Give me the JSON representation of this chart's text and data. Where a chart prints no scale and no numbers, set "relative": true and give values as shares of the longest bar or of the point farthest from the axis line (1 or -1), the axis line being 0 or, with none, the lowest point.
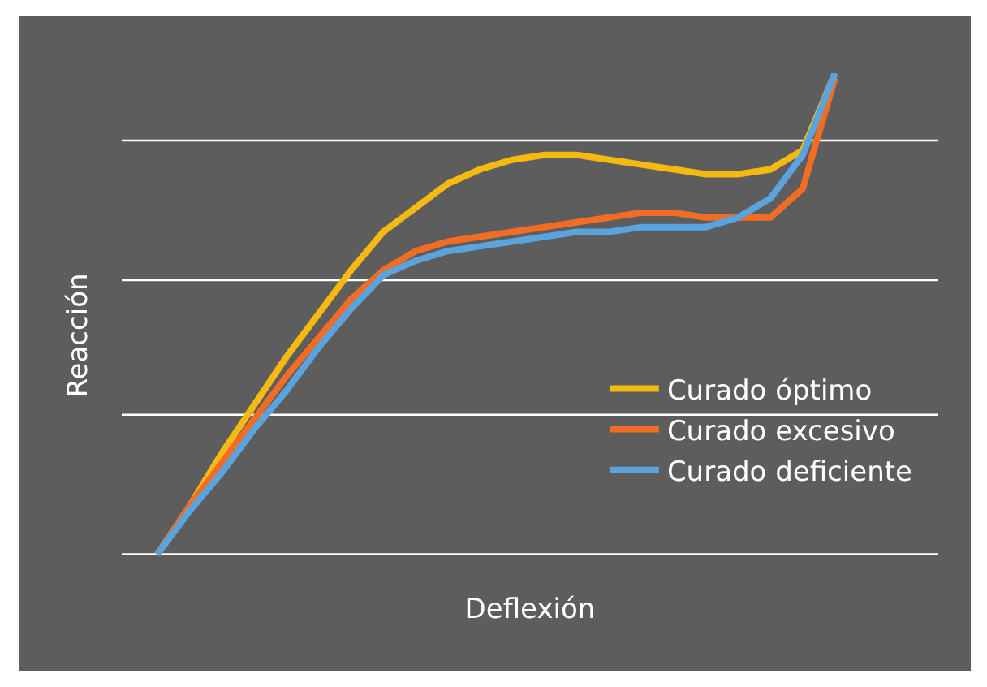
{
  "chart_data": {
    "type": "line",
    "relative": true,
    "xlabel": "Deflexión",
    "ylabel": "Reacción",
    "ref_lines": [
      {
        "axis": "y",
        "value": 0,
        "color": "#ffffff"
      },
      {
        "axis": "y",
        "value": 0.29,
        "color": "#ffffff"
      },
      {
        "axis": "y",
        "value": 0.57,
        "color": "#ffffff"
      },
      {
        "axis": "y",
        "value": 0.86,
        "color": "#ffffff"
      }
    ],
    "legend": "right",
    "marker": "none",
    "line_style": "solid",
    "categories": [
      null,
      null,
      null,
      null,
      null,
      null,
      null,
      null,
      null,
      null,
      null,
      null,
      null,
      null,
      null,
      null,
      null,
      null,
      null,
      null,
      null,
      null
    ],
    "series": [
      {
        "name": "Curado óptimo",
        "color": "#f5b90f",
        "values": [
          0,
          0.1,
          0.21,
          0.31,
          0.41,
          0.5,
          0.59,
          0.67,
          0.72,
          0.77,
          0.8,
          0.82,
          0.83,
          0.83,
          0.82,
          0.81,
          0.8,
          0.79,
          0.79,
          0.8,
          0.84,
          1.0
        ]
      },
      {
        "name": "Curado excesivo",
        "color": "#f26c23",
        "values": [
          0,
          0.1,
          0.19,
          0.28,
          0.37,
          0.45,
          0.53,
          0.59,
          0.63,
          0.65,
          0.66,
          0.67,
          0.68,
          0.69,
          0.7,
          0.71,
          0.71,
          0.7,
          0.7,
          0.7,
          0.76,
          0.99
        ]
      },
      {
        "name": "Curado deficiente",
        "color": "#5ba3dc",
        "values": [
          0,
          0.09,
          0.17,
          0.26,
          0.34,
          0.43,
          0.51,
          0.58,
          0.61,
          0.63,
          0.64,
          0.65,
          0.66,
          0.67,
          0.67,
          0.68,
          0.68,
          0.68,
          0.7,
          0.74,
          0.83,
          1.0
        ]
      }
    ]
  }
}
